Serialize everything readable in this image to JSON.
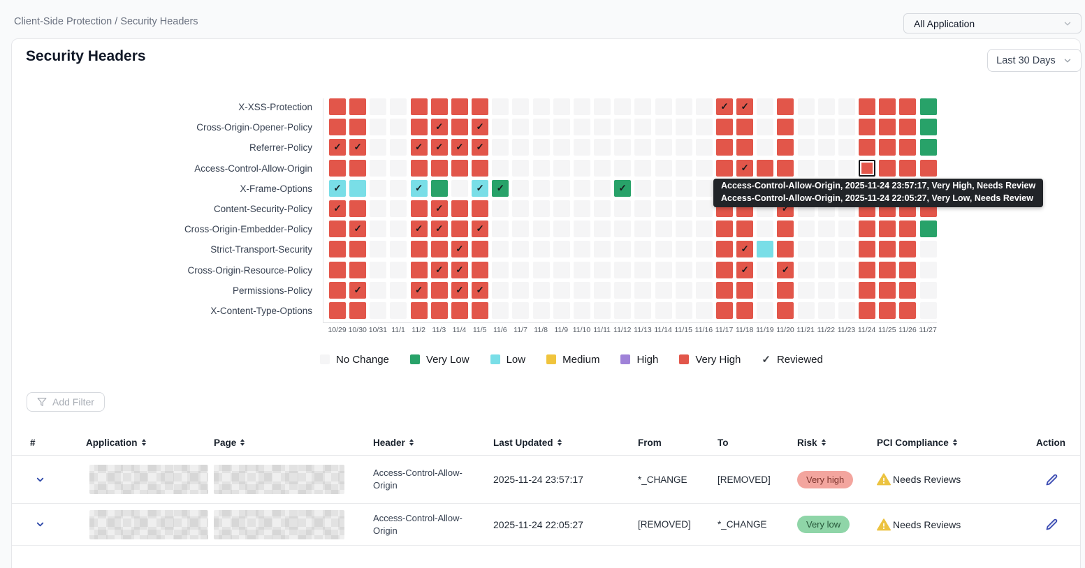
{
  "breadcrumb": "Client-Side Protection / Security Headers",
  "app_filter": {
    "value": "All Application"
  },
  "card": {
    "title": "Security Headers",
    "date_range": "Last 30 Days"
  },
  "colors": {
    "no_change": "#f5f5f6",
    "very_low": "#28a269",
    "low": "#79dee7",
    "medium": "#f0c43d",
    "high": "#9f82d8",
    "very_high": "#e2564a"
  },
  "chart_data": {
    "type": "heatmap",
    "title": "Security Headers",
    "rows": [
      "X-XSS-Protection",
      "Cross-Origin-Opener-Policy",
      "Referrer-Policy",
      "Access-Control-Allow-Origin",
      "X-Frame-Options",
      "Content-Security-Policy",
      "Cross-Origin-Embedder-Policy",
      "Strict-Transport-Security",
      "Cross-Origin-Resource-Policy",
      "Permissions-Policy",
      "X-Content-Type-Options"
    ],
    "columns": [
      "10/29",
      "10/30",
      "10/31",
      "11/1",
      "11/2",
      "11/3",
      "11/4",
      "11/5",
      "11/6",
      "11/7",
      "11/8",
      "11/9",
      "11/10",
      "11/11",
      "11/12",
      "11/13",
      "11/14",
      "11/15",
      "11/16",
      "11/17",
      "11/18",
      "11/19",
      "11/20",
      "11/21",
      "11/22",
      "11/23",
      "11/24",
      "11/25",
      "11/26",
      "11/27"
    ],
    "cell_codes": {
      "": "No Change",
      "R": "Very High",
      "RC": "Very High + Reviewed",
      "G": "Very Low",
      "GC": "Very Low + Reviewed",
      "C": "Low",
      "CC": "Low + Reviewed",
      "SEL": "Very High (selected cell)"
    },
    "cells": [
      [
        "R",
        "R",
        "",
        "",
        "R",
        "R",
        "R",
        "R",
        "",
        "",
        "",
        "",
        "",
        "",
        "",
        "",
        "",
        "",
        "",
        "RC",
        "RC",
        "",
        "R",
        "",
        "",
        "",
        "R",
        "R",
        "R",
        "G"
      ],
      [
        "R",
        "R",
        "",
        "",
        "R",
        "RC",
        "R",
        "RC",
        "",
        "",
        "",
        "",
        "",
        "",
        "",
        "",
        "",
        "",
        "",
        "R",
        "R",
        "",
        "R",
        "",
        "",
        "",
        "R",
        "R",
        "R",
        "G"
      ],
      [
        "RC",
        "RC",
        "",
        "",
        "RC",
        "RC",
        "RC",
        "RC",
        "",
        "",
        "",
        "",
        "",
        "",
        "",
        "",
        "",
        "",
        "",
        "R",
        "R",
        "",
        "R",
        "",
        "",
        "",
        "R",
        "R",
        "R",
        "G"
      ],
      [
        "R",
        "R",
        "",
        "",
        "R",
        "R",
        "R",
        "R",
        "",
        "",
        "",
        "",
        "",
        "",
        "",
        "",
        "",
        "",
        "",
        "R",
        "RC",
        "R",
        "R",
        "",
        "",
        "",
        "SEL",
        "R",
        "R",
        "R"
      ],
      [
        "CC",
        "C",
        "",
        "",
        "CC",
        "G",
        "",
        "CC",
        "GC",
        "",
        "",
        "",
        "",
        "",
        "GC",
        "",
        "",
        "",
        "",
        "G",
        "G",
        "R",
        "R",
        "",
        "",
        "",
        "C",
        "",
        "C",
        "R"
      ],
      [
        "RC",
        "R",
        "",
        "",
        "R",
        "RC",
        "R",
        "R",
        "",
        "",
        "",
        "",
        "",
        "",
        "",
        "",
        "",
        "",
        "",
        "R",
        "R",
        "",
        "RC",
        "",
        "",
        "",
        "R",
        "R",
        "R",
        "R"
      ],
      [
        "R",
        "RC",
        "",
        "",
        "RC",
        "RC",
        "R",
        "RC",
        "",
        "",
        "",
        "",
        "",
        "",
        "",
        "",
        "",
        "",
        "",
        "R",
        "R",
        "",
        "R",
        "",
        "",
        "",
        "R",
        "R",
        "R",
        "G"
      ],
      [
        "R",
        "R",
        "",
        "",
        "R",
        "R",
        "RC",
        "R",
        "",
        "",
        "",
        "",
        "",
        "",
        "",
        "",
        "",
        "",
        "",
        "R",
        "RC",
        "C",
        "R",
        "",
        "",
        "",
        "R",
        "R",
        "R",
        ""
      ],
      [
        "R",
        "R",
        "",
        "",
        "R",
        "RC",
        "RC",
        "R",
        "",
        "",
        "",
        "",
        "",
        "",
        "",
        "",
        "",
        "",
        "",
        "R",
        "RC",
        "",
        "RC",
        "",
        "",
        "",
        "R",
        "R",
        "R",
        ""
      ],
      [
        "R",
        "RC",
        "",
        "",
        "RC",
        "R",
        "RC",
        "RC",
        "",
        "",
        "",
        "",
        "",
        "",
        "",
        "",
        "",
        "",
        "",
        "R",
        "R",
        "",
        "R",
        "",
        "",
        "",
        "R",
        "R",
        "R",
        ""
      ],
      [
        "R",
        "R",
        "",
        "",
        "R",
        "R",
        "R",
        "R",
        "",
        "",
        "",
        "",
        "",
        "",
        "",
        "",
        "",
        "",
        "",
        "R",
        "R",
        "",
        "R",
        "",
        "",
        "",
        "R",
        "R",
        "R",
        ""
      ]
    ],
    "legend": [
      {
        "label": "No Change",
        "key": "no_change"
      },
      {
        "label": "Very Low",
        "key": "very_low"
      },
      {
        "label": "Low",
        "key": "low"
      },
      {
        "label": "Medium",
        "key": "medium"
      },
      {
        "label": "High",
        "key": "high"
      },
      {
        "label": "Very High",
        "key": "very_high"
      },
      {
        "label": "Reviewed",
        "key": "reviewed"
      }
    ]
  },
  "tooltip": {
    "lines": [
      "Access-Control-Allow-Origin, 2025-11-24 23:57:17, Very High, Needs Review",
      "Access-Control-Allow-Origin, 2025-11-24 22:05:27, Very Low, Needs Review"
    ]
  },
  "filter_button": {
    "label": "Add Filter"
  },
  "table": {
    "columns": [
      {
        "label": "#",
        "sortable": false
      },
      {
        "label": "Application",
        "sortable": true
      },
      {
        "label": "Page",
        "sortable": true
      },
      {
        "label": "Header",
        "sortable": true
      },
      {
        "label": "Last Updated",
        "sortable": true
      },
      {
        "label": "From",
        "sortable": false
      },
      {
        "label": "To",
        "sortable": false
      },
      {
        "label": "Risk",
        "sortable": true
      },
      {
        "label": "PCI Compliance",
        "sortable": true
      },
      {
        "label": "Action",
        "sortable": false
      }
    ],
    "rows": [
      {
        "header": "Access-Control-Allow-Origin",
        "last_updated": "2025-11-24 23:57:17",
        "from": "*_CHANGE",
        "to": "[REMOVED]",
        "risk": "Very high",
        "risk_level": "very-high",
        "pci": "Needs Reviews"
      },
      {
        "header": "Access-Control-Allow-Origin",
        "last_updated": "2025-11-24 22:05:27",
        "from": "[REMOVED]",
        "to": "*_CHANGE",
        "risk": "Very low",
        "risk_level": "very-low",
        "pci": "Needs Reviews"
      }
    ]
  }
}
